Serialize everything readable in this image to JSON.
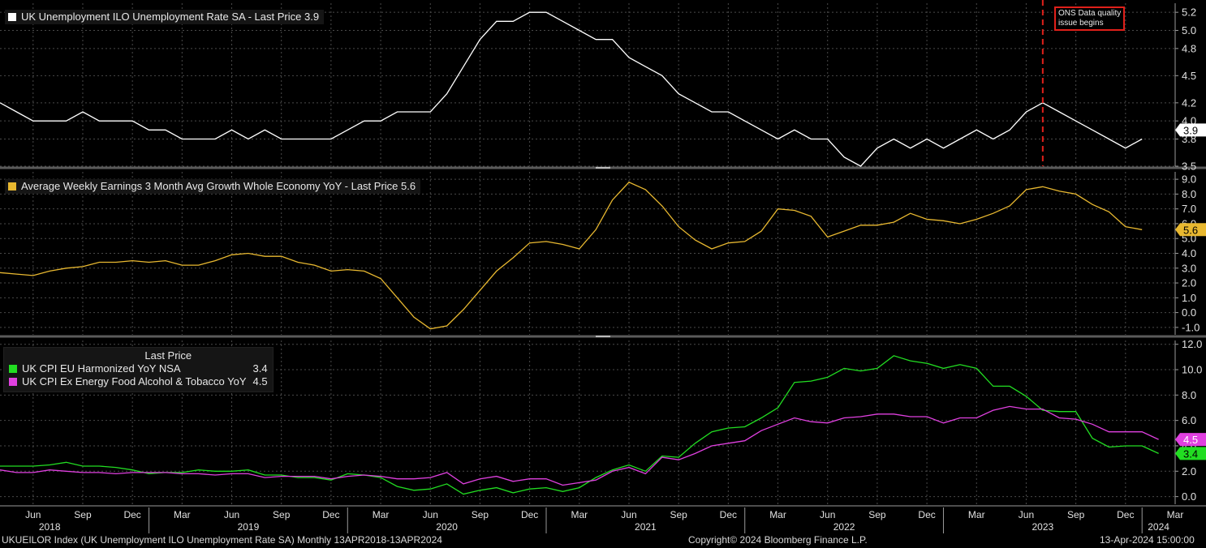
{
  "footer": {
    "left": "UKUEILOR Index (UK Unemployment ILO Unemployment Rate SA)  Monthly 13APR2018-13APR2024",
    "center": "Copyright© 2024 Bloomberg Finance L.P.",
    "right": "13-Apr-2024 15:00:00"
  },
  "annotation": {
    "line1": "ONS Data quality",
    "line2": "issue begins",
    "date": "2023-07",
    "color": "#e0201a"
  },
  "time_axis": {
    "start": "2018-04",
    "end": "2024-03",
    "month_ticks": [
      {
        "date": "2018-06",
        "label": "Jun"
      },
      {
        "date": "2018-09",
        "label": "Sep"
      },
      {
        "date": "2018-12",
        "label": "Dec"
      },
      {
        "date": "2019-03",
        "label": "Mar"
      },
      {
        "date": "2019-06",
        "label": "Jun"
      },
      {
        "date": "2019-09",
        "label": "Sep"
      },
      {
        "date": "2019-12",
        "label": "Dec"
      },
      {
        "date": "2020-03",
        "label": "Mar"
      },
      {
        "date": "2020-06",
        "label": "Jun"
      },
      {
        "date": "2020-09",
        "label": "Sep"
      },
      {
        "date": "2020-12",
        "label": "Dec"
      },
      {
        "date": "2021-03",
        "label": "Mar"
      },
      {
        "date": "2021-06",
        "label": "Jun"
      },
      {
        "date": "2021-09",
        "label": "Sep"
      },
      {
        "date": "2021-12",
        "label": "Dec"
      },
      {
        "date": "2022-03",
        "label": "Mar"
      },
      {
        "date": "2022-06",
        "label": "Jun"
      },
      {
        "date": "2022-09",
        "label": "Sep"
      },
      {
        "date": "2022-12",
        "label": "Dec"
      },
      {
        "date": "2023-03",
        "label": "Mar"
      },
      {
        "date": "2023-06",
        "label": "Jun"
      },
      {
        "date": "2023-09",
        "label": "Sep"
      },
      {
        "date": "2023-12",
        "label": "Dec"
      },
      {
        "date": "2024-03",
        "label": "Mar"
      }
    ],
    "year_labels": [
      {
        "date": "2018-07",
        "label": "2018"
      },
      {
        "date": "2019-07",
        "label": "2019"
      },
      {
        "date": "2020-07",
        "label": "2020"
      },
      {
        "date": "2021-07",
        "label": "2021"
      },
      {
        "date": "2022-07",
        "label": "2022"
      },
      {
        "date": "2023-07",
        "label": "2023"
      },
      {
        "date": "2024-02",
        "label": "2024"
      }
    ]
  },
  "chart_data": [
    {
      "type": "line",
      "legend": "UK Unemployment ILO Unemployment Rate SA - Last Price 3.9",
      "ylim": [
        3.5,
        5.3
      ],
      "yticks": [
        3.5,
        3.8,
        4.0,
        4.2,
        4.5,
        4.8,
        5.0,
        5.2
      ],
      "last_value": "3.9",
      "grid": true,
      "series": [
        {
          "name": "UK Unemployment ILO Unemployment Rate SA",
          "color": "#ffffff",
          "x": [
            "2018-04",
            "2018-05",
            "2018-06",
            "2018-07",
            "2018-08",
            "2018-09",
            "2018-10",
            "2018-11",
            "2018-12",
            "2019-01",
            "2019-02",
            "2019-03",
            "2019-04",
            "2019-05",
            "2019-06",
            "2019-07",
            "2019-08",
            "2019-09",
            "2019-10",
            "2019-11",
            "2019-12",
            "2020-01",
            "2020-02",
            "2020-03",
            "2020-04",
            "2020-05",
            "2020-06",
            "2020-07",
            "2020-08",
            "2020-09",
            "2020-10",
            "2020-11",
            "2020-12",
            "2021-01",
            "2021-02",
            "2021-03",
            "2021-04",
            "2021-05",
            "2021-06",
            "2021-07",
            "2021-08",
            "2021-09",
            "2021-10",
            "2021-11",
            "2021-12",
            "2022-01",
            "2022-02",
            "2022-03",
            "2022-04",
            "2022-05",
            "2022-06",
            "2022-07",
            "2022-08",
            "2022-09",
            "2022-10",
            "2022-11",
            "2022-12",
            "2023-01",
            "2023-02",
            "2023-03",
            "2023-04",
            "2023-05",
            "2023-06",
            "2023-07",
            "2023-08",
            "2023-09",
            "2023-10",
            "2023-11",
            "2023-12",
            "2024-01"
          ],
          "values": [
            4.2,
            4.1,
            4.0,
            4.0,
            4.0,
            4.1,
            4.0,
            4.0,
            4.0,
            3.9,
            3.9,
            3.8,
            3.8,
            3.8,
            3.9,
            3.8,
            3.9,
            3.8,
            3.8,
            3.8,
            3.8,
            3.9,
            4.0,
            4.0,
            4.1,
            4.1,
            4.1,
            4.3,
            4.6,
            4.9,
            5.1,
            5.1,
            5.2,
            5.2,
            5.1,
            5.0,
            4.9,
            4.9,
            4.7,
            4.6,
            4.5,
            4.3,
            4.2,
            4.1,
            4.1,
            4.0,
            3.9,
            3.8,
            3.9,
            3.8,
            3.8,
            3.6,
            3.5,
            3.7,
            3.8,
            3.7,
            3.8,
            3.7,
            3.8,
            3.9,
            3.8,
            3.9,
            4.1,
            4.2,
            4.1,
            4.0,
            3.9,
            3.8,
            3.7,
            3.8
          ]
        }
      ]
    },
    {
      "type": "line",
      "legend": "Average Weekly Earnings 3 Month Avg Growth Whole Economy YoY - Last Price 5.6",
      "ylim": [
        -1.5,
        9.5
      ],
      "yticks": [
        -1.0,
        0.0,
        1.0,
        2.0,
        3.0,
        4.0,
        5.0,
        6.0,
        7.0,
        8.0,
        9.0
      ],
      "last_value": "5.6",
      "grid": true,
      "series": [
        {
          "name": "Average Weekly Earnings 3 Month Avg Growth Whole Economy YoY",
          "color": "#e8b830",
          "x": [
            "2018-04",
            "2018-05",
            "2018-06",
            "2018-07",
            "2018-08",
            "2018-09",
            "2018-10",
            "2018-11",
            "2018-12",
            "2019-01",
            "2019-02",
            "2019-03",
            "2019-04",
            "2019-05",
            "2019-06",
            "2019-07",
            "2019-08",
            "2019-09",
            "2019-10",
            "2019-11",
            "2019-12",
            "2020-01",
            "2020-02",
            "2020-03",
            "2020-04",
            "2020-05",
            "2020-06",
            "2020-07",
            "2020-08",
            "2020-09",
            "2020-10",
            "2020-11",
            "2020-12",
            "2021-01",
            "2021-02",
            "2021-03",
            "2021-04",
            "2021-05",
            "2021-06",
            "2021-07",
            "2021-08",
            "2021-09",
            "2021-10",
            "2021-11",
            "2021-12",
            "2022-01",
            "2022-02",
            "2022-03",
            "2022-04",
            "2022-05",
            "2022-06",
            "2022-07",
            "2022-08",
            "2022-09",
            "2022-10",
            "2022-11",
            "2022-12",
            "2023-01",
            "2023-02",
            "2023-03",
            "2023-04",
            "2023-05",
            "2023-06",
            "2023-07",
            "2023-08",
            "2023-09",
            "2023-10",
            "2023-11",
            "2023-12",
            "2024-01"
          ],
          "values": [
            2.7,
            2.6,
            2.5,
            2.8,
            3.0,
            3.1,
            3.4,
            3.4,
            3.5,
            3.4,
            3.5,
            3.2,
            3.2,
            3.5,
            3.9,
            4.0,
            3.8,
            3.8,
            3.4,
            3.2,
            2.8,
            2.9,
            2.8,
            2.3,
            1.0,
            -0.3,
            -1.1,
            -0.9,
            0.2,
            1.5,
            2.8,
            3.7,
            4.7,
            4.8,
            4.6,
            4.3,
            5.6,
            7.6,
            8.8,
            8.3,
            7.2,
            5.8,
            4.9,
            4.3,
            4.7,
            4.8,
            5.5,
            7.0,
            6.9,
            6.5,
            5.1,
            5.5,
            5.9,
            5.9,
            6.1,
            6.7,
            6.3,
            6.2,
            6.0,
            6.3,
            6.7,
            7.2,
            8.3,
            8.5,
            8.2,
            8.0,
            7.3,
            6.8,
            5.8,
            5.6
          ]
        }
      ]
    },
    {
      "type": "line",
      "legend_header": "Last Price",
      "ylim": [
        -0.6,
        12.3
      ],
      "yticks": [
        0.0,
        2.0,
        4.0,
        6.0,
        8.0,
        10.0,
        12.0
      ],
      "grid": true,
      "series": [
        {
          "name": "UK CPI EU Harmonized YoY NSA",
          "color": "#22dd22",
          "last_value": "3.4",
          "x": [
            "2018-04",
            "2018-05",
            "2018-06",
            "2018-07",
            "2018-08",
            "2018-09",
            "2018-10",
            "2018-11",
            "2018-12",
            "2019-01",
            "2019-02",
            "2019-03",
            "2019-04",
            "2019-05",
            "2019-06",
            "2019-07",
            "2019-08",
            "2019-09",
            "2019-10",
            "2019-11",
            "2019-12",
            "2020-01",
            "2020-02",
            "2020-03",
            "2020-04",
            "2020-05",
            "2020-06",
            "2020-07",
            "2020-08",
            "2020-09",
            "2020-10",
            "2020-11",
            "2020-12",
            "2021-01",
            "2021-02",
            "2021-03",
            "2021-04",
            "2021-05",
            "2021-06",
            "2021-07",
            "2021-08",
            "2021-09",
            "2021-10",
            "2021-11",
            "2021-12",
            "2022-01",
            "2022-02",
            "2022-03",
            "2022-04",
            "2022-05",
            "2022-06",
            "2022-07",
            "2022-08",
            "2022-09",
            "2022-10",
            "2022-11",
            "2022-12",
            "2023-01",
            "2023-02",
            "2023-03",
            "2023-04",
            "2023-05",
            "2023-06",
            "2023-07",
            "2023-08",
            "2023-09",
            "2023-10",
            "2023-11",
            "2023-12",
            "2024-01",
            "2024-02"
          ],
          "values": [
            2.4,
            2.4,
            2.4,
            2.5,
            2.7,
            2.4,
            2.4,
            2.3,
            2.1,
            1.8,
            1.9,
            1.9,
            2.1,
            2.0,
            2.0,
            2.1,
            1.7,
            1.7,
            1.5,
            1.5,
            1.3,
            1.8,
            1.7,
            1.5,
            0.8,
            0.5,
            0.6,
            1.0,
            0.2,
            0.5,
            0.7,
            0.3,
            0.6,
            0.7,
            0.4,
            0.7,
            1.5,
            2.1,
            2.5,
            2.0,
            3.2,
            3.1,
            4.2,
            5.1,
            5.4,
            5.5,
            6.2,
            7.0,
            9.0,
            9.1,
            9.4,
            10.1,
            9.9,
            10.1,
            11.1,
            10.7,
            10.5,
            10.1,
            10.4,
            10.1,
            8.7,
            8.7,
            7.9,
            6.8,
            6.7,
            6.7,
            4.6,
            3.9,
            4.0,
            4.0,
            3.4
          ]
        },
        {
          "name": "UK CPI Ex Energy Food Alcohol & Tobacco YoY",
          "color": "#e040e0",
          "last_value": "4.5",
          "x": [
            "2018-04",
            "2018-05",
            "2018-06",
            "2018-07",
            "2018-08",
            "2018-09",
            "2018-10",
            "2018-11",
            "2018-12",
            "2019-01",
            "2019-02",
            "2019-03",
            "2019-04",
            "2019-05",
            "2019-06",
            "2019-07",
            "2019-08",
            "2019-09",
            "2019-10",
            "2019-11",
            "2019-12",
            "2020-01",
            "2020-02",
            "2020-03",
            "2020-04",
            "2020-05",
            "2020-06",
            "2020-07",
            "2020-08",
            "2020-09",
            "2020-10",
            "2020-11",
            "2020-12",
            "2021-01",
            "2021-02",
            "2021-03",
            "2021-04",
            "2021-05",
            "2021-06",
            "2021-07",
            "2021-08",
            "2021-09",
            "2021-10",
            "2021-11",
            "2021-12",
            "2022-01",
            "2022-02",
            "2022-03",
            "2022-04",
            "2022-05",
            "2022-06",
            "2022-07",
            "2022-08",
            "2022-09",
            "2022-10",
            "2022-11",
            "2022-12",
            "2023-01",
            "2023-02",
            "2023-03",
            "2023-04",
            "2023-05",
            "2023-06",
            "2023-07",
            "2023-08",
            "2023-09",
            "2023-10",
            "2023-11",
            "2023-12",
            "2024-01",
            "2024-02"
          ],
          "values": [
            2.1,
            1.9,
            1.9,
            2.1,
            2.0,
            1.9,
            1.9,
            1.8,
            1.9,
            1.9,
            1.9,
            1.8,
            1.8,
            1.7,
            1.8,
            1.8,
            1.5,
            1.6,
            1.6,
            1.6,
            1.4,
            1.6,
            1.7,
            1.6,
            1.4,
            1.4,
            1.5,
            1.9,
            1.0,
            1.4,
            1.6,
            1.2,
            1.4,
            1.4,
            0.9,
            1.1,
            1.3,
            2.0,
            2.3,
            1.8,
            3.1,
            2.9,
            3.4,
            4.0,
            4.2,
            4.4,
            5.2,
            5.7,
            6.2,
            5.9,
            5.8,
            6.2,
            6.3,
            6.5,
            6.5,
            6.3,
            6.3,
            5.8,
            6.2,
            6.2,
            6.8,
            7.1,
            6.9,
            6.9,
            6.2,
            6.1,
            5.7,
            5.1,
            5.1,
            5.1,
            4.5
          ]
        }
      ]
    }
  ]
}
